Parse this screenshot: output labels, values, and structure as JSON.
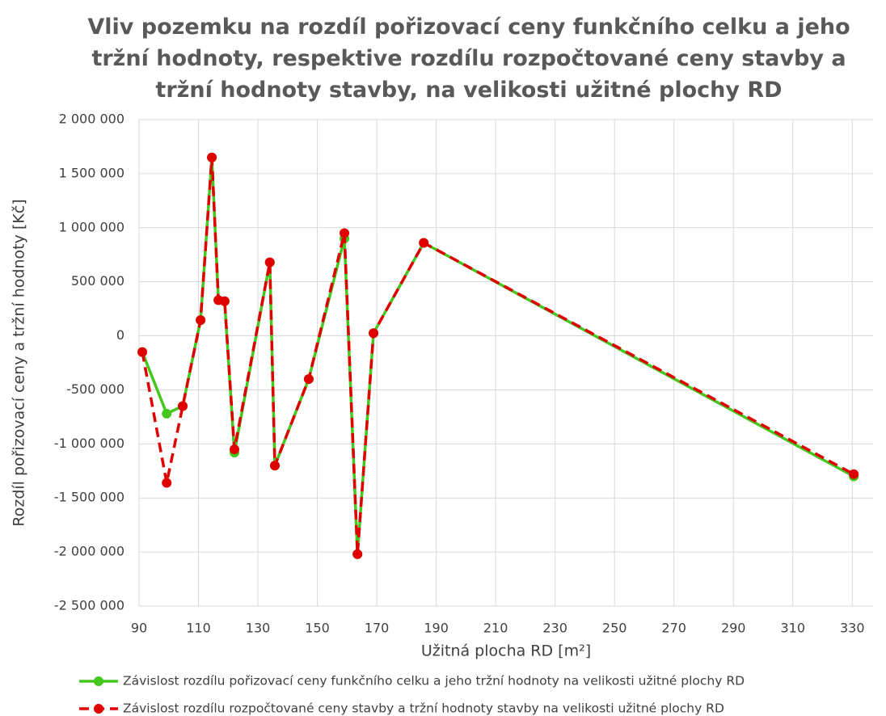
{
  "chart_data": {
    "type": "line",
    "title": "Vliv pozemku na rozdíl pořizovací ceny funkčního celku a jeho tržní hodnoty, respektive rozdílu rozpočtované ceny stavby a tržní hodnoty stavby, na velikosti užitné plochy RD",
    "x_label": "Užitná plocha RD [m²]",
    "y_label": "Rozdíl pořizovací ceny a tržní hodnoty [Kč]",
    "x": [
      91.1,
      99.3,
      104.7,
      110.7,
      114.5,
      116.7,
      118.8,
      122.1,
      134,
      135.7,
      147.1,
      159.1,
      163.5,
      168.9,
      185.8,
      330.5
    ],
    "series": [
      {
        "name": "Závislost rozdílu pořizovací ceny funkčního celku a jeho tržní hodnoty na velikosti užitné plochy RD",
        "color": "#44c81e",
        "dash": false,
        "values": [
          -150000,
          -720000,
          -650000,
          145000,
          1650000,
          330000,
          320000,
          -1080000,
          680000,
          -1200000,
          -400000,
          900000,
          -2020000,
          25000,
          860000,
          -1300000
        ]
      },
      {
        "name": "Závislost rozdílu rozpočtované ceny stavby a tržní hodnoty stavby na velikosti užitné plochy RD",
        "color": "#e00000",
        "dash": true,
        "values": [
          -150000,
          -1360000,
          -650000,
          145000,
          1650000,
          330000,
          320000,
          -1050000,
          680000,
          -1200000,
          -400000,
          950000,
          -2020000,
          25000,
          860000,
          -1280000
        ]
      }
    ],
    "xlim": [
      90,
      337
    ],
    "xticks": [
      90,
      110,
      130,
      150,
      170,
      190,
      210,
      230,
      250,
      270,
      290,
      310,
      330
    ],
    "ylim": [
      -2500000,
      2000000
    ],
    "yticks": [
      {
        "value": -2500000,
        "label": "-2 500 000"
      },
      {
        "value": -2000000,
        "label": "-2 000 000"
      },
      {
        "value": -1500000,
        "label": "-1 500 000"
      },
      {
        "value": -1000000,
        "label": "-1 000 000"
      },
      {
        "value": -500000,
        "label": "-500 000"
      },
      0,
      {
        "value": 500000,
        "label": "500 000"
      },
      {
        "value": 1000000,
        "label": "1 000 000"
      },
      {
        "value": 1500000,
        "label": "1 500 000"
      },
      {
        "value": 2000000,
        "label": "2 000 000"
      }
    ],
    "grid": true,
    "legend": "bottom"
  }
}
